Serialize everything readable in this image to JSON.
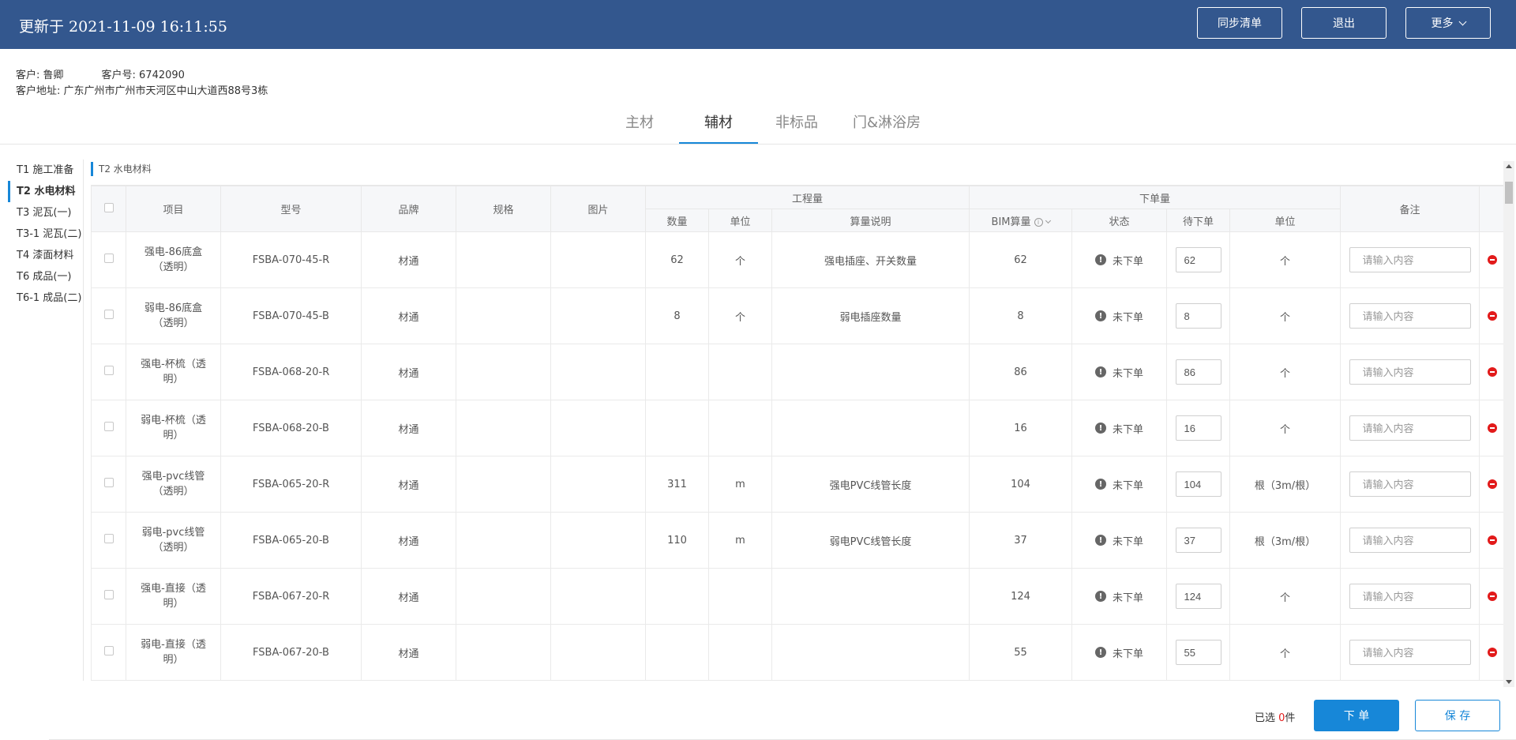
{
  "header": {
    "title": "更新于 2021-11-09 16:11:55",
    "sync_label": "同步清单",
    "exit_label": "退出",
    "more_label": "更多"
  },
  "customer": {
    "name": "客户: 鲁卿",
    "number": "客户号: 6742090",
    "address": "客户地址: 广东广州市广州市天河区中山大道西88号3栋"
  },
  "tabs": [
    {
      "label": "主材"
    },
    {
      "label": "辅材"
    },
    {
      "label": "非标品"
    },
    {
      "label": "门&淋浴房"
    }
  ],
  "sidebar": {
    "items": [
      {
        "label": "T1 施工准备"
      },
      {
        "label": "T2 水电材料"
      },
      {
        "label": "T3 泥瓦(一)"
      },
      {
        "label": "T3-1 泥瓦(二)"
      },
      {
        "label": "T4 漆面材料"
      },
      {
        "label": "T6 成品(一)"
      },
      {
        "label": "T6-1 成品(二)"
      }
    ]
  },
  "section_title": "T2 水电材料",
  "table": {
    "headers": {
      "item": "项目",
      "model": "型号",
      "brand": "品牌",
      "spec": "规格",
      "image": "图片",
      "quantities_group": "工程量",
      "order_group": "下单量",
      "remark": "备注",
      "qty": "数量",
      "unit": "单位",
      "calc_desc": "算量说明",
      "bim": "BIM算量",
      "status": "状态",
      "pending": "待下单",
      "order_unit": "单位"
    },
    "remark_placeholder": "请输入内容",
    "rows": [
      {
        "item": "强电-86底盒（透明）",
        "model": "FSBA-070-45-R",
        "brand": "材通",
        "qty": "62",
        "unit": "个",
        "desc": "强电插座、开关数量",
        "bim": "62",
        "status": "未下单",
        "pending": "62",
        "order_unit": "个"
      },
      {
        "item": "弱电-86底盒（透明）",
        "model": "FSBA-070-45-B",
        "brand": "材通",
        "qty": "8",
        "unit": "个",
        "desc": "弱电插座数量",
        "bim": "8",
        "status": "未下单",
        "pending": "8",
        "order_unit": "个"
      },
      {
        "item": "强电-杯梳（透明）",
        "model": "FSBA-068-20-R",
        "brand": "材通",
        "qty": "",
        "unit": "",
        "desc": "",
        "bim": "86",
        "status": "未下单",
        "pending": "86",
        "order_unit": "个"
      },
      {
        "item": "弱电-杯梳（透明）",
        "model": "FSBA-068-20-B",
        "brand": "材通",
        "qty": "",
        "unit": "",
        "desc": "",
        "bim": "16",
        "status": "未下单",
        "pending": "16",
        "order_unit": "个"
      },
      {
        "item": "强电-pvc线管（透明）",
        "model": "FSBA-065-20-R",
        "brand": "材通",
        "qty": "311",
        "unit": "m",
        "desc": "强电PVC线管长度",
        "bim": "104",
        "status": "未下单",
        "pending": "104",
        "order_unit": "根（3m/根）"
      },
      {
        "item": "弱电-pvc线管（透明）",
        "model": "FSBA-065-20-B",
        "brand": "材通",
        "qty": "110",
        "unit": "m",
        "desc": "弱电PVC线管长度",
        "bim": "37",
        "status": "未下单",
        "pending": "37",
        "order_unit": "根（3m/根）"
      },
      {
        "item": "强电-直接（透明）",
        "model": "FSBA-067-20-R",
        "brand": "材通",
        "qty": "",
        "unit": "",
        "desc": "",
        "bim": "124",
        "status": "未下单",
        "pending": "124",
        "order_unit": "个"
      },
      {
        "item": "弱电-直接（透明）",
        "model": "FSBA-067-20-B",
        "brand": "材通",
        "qty": "",
        "unit": "",
        "desc": "",
        "bim": "55",
        "status": "未下单",
        "pending": "55",
        "order_unit": "个"
      }
    ]
  },
  "footer": {
    "selected_prefix": "已选 ",
    "selected_count": "0",
    "selected_suffix": "件",
    "order_label": "下 单",
    "save_label": "保 存"
  },
  "colors": {
    "header_bg": "#33578e",
    "accent": "#1787d8",
    "danger": "#e21a1a"
  }
}
